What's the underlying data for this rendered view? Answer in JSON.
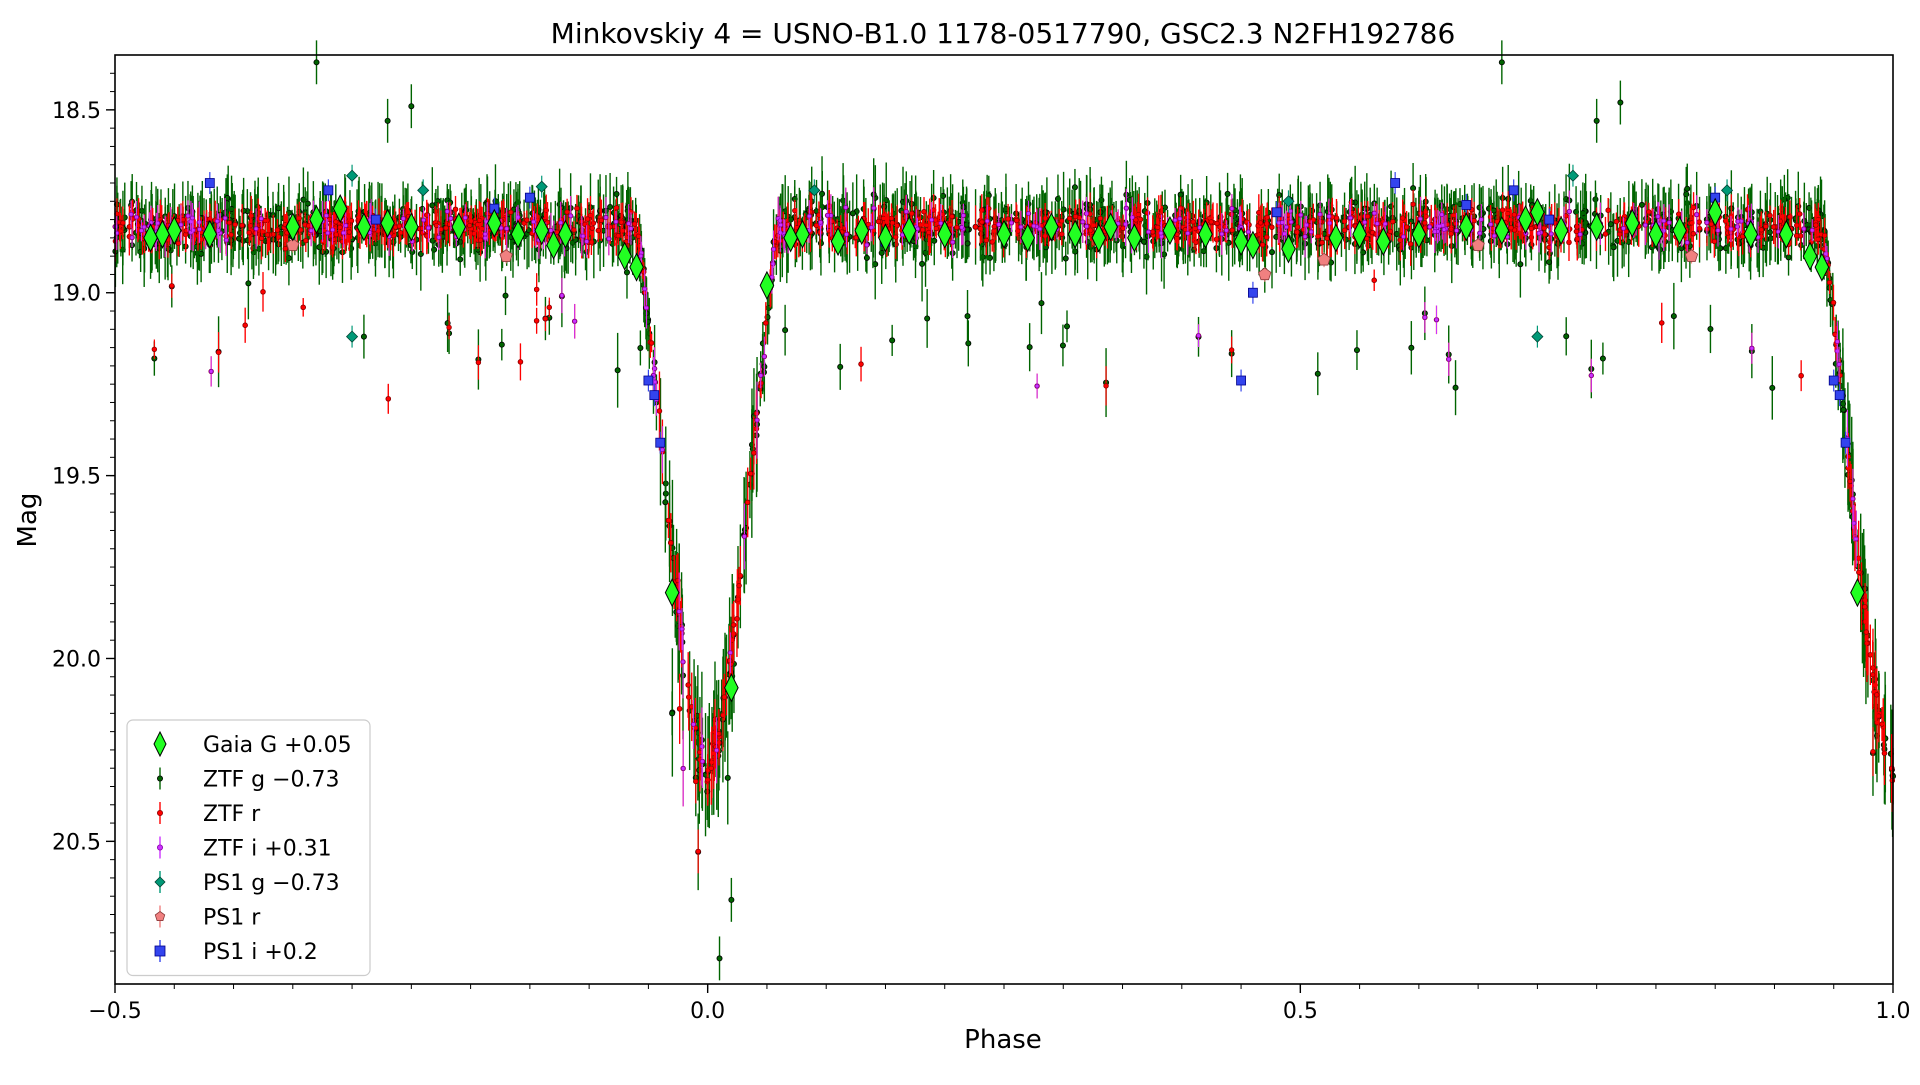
{
  "chart_data": {
    "type": "scatter",
    "title": "Minkovskiy 4 = USNO-B1.0 1178-0517790, GSC2.3 N2FH192786",
    "xlabel": "Phase",
    "ylabel": "Mag",
    "xlim": [
      -0.5,
      1.0
    ],
    "ylim": [
      20.89,
      18.35
    ],
    "y_inverted": true,
    "grid": false,
    "legend_position": "lower-left",
    "xticks": [
      -0.5,
      0.0,
      0.5,
      1.0
    ],
    "xtick_labels": [
      "−0.5",
      "0.0",
      "0.5",
      "1.0"
    ],
    "yticks": [
      18.5,
      19.0,
      19.5,
      20.0,
      20.5
    ],
    "ytick_labels": [
      "18.5",
      "19.0",
      "19.5",
      "20.0",
      "20.5"
    ],
    "light_curve": {
      "baseline_mag": 18.82,
      "eclipse_center_phase": 0.0,
      "eclipse_depth_mag": 1.48,
      "eclipse_half_width_phase": 0.06
    },
    "series": [
      {
        "name": "Gaia G +0.05",
        "color": "#22ff22",
        "edge": "#000000",
        "marker": "thin-diamond",
        "points": [
          [
            -0.47,
            18.85
          ],
          [
            -0.46,
            18.84
          ],
          [
            -0.45,
            18.83
          ],
          [
            -0.42,
            18.84
          ],
          [
            -0.35,
            18.82
          ],
          [
            -0.33,
            18.8
          ],
          [
            -0.31,
            18.77
          ],
          [
            -0.29,
            18.82
          ],
          [
            -0.27,
            18.81
          ],
          [
            -0.25,
            18.82
          ],
          [
            -0.21,
            18.82
          ],
          [
            -0.18,
            18.81
          ],
          [
            -0.16,
            18.84
          ],
          [
            -0.14,
            18.83
          ],
          [
            -0.13,
            18.87
          ],
          [
            -0.12,
            18.84
          ],
          [
            -0.07,
            18.9
          ],
          [
            -0.06,
            18.93
          ],
          [
            -0.03,
            19.82
          ],
          [
            0.02,
            20.08
          ],
          [
            0.05,
            18.98
          ],
          [
            0.07,
            18.85
          ],
          [
            0.08,
            18.84
          ],
          [
            0.11,
            18.86
          ],
          [
            0.13,
            18.83
          ],
          [
            0.15,
            18.85
          ],
          [
            0.17,
            18.83
          ],
          [
            0.2,
            18.84
          ],
          [
            0.25,
            18.84
          ],
          [
            0.27,
            18.85
          ],
          [
            0.29,
            18.82
          ],
          [
            0.31,
            18.84
          ],
          [
            0.33,
            18.85
          ],
          [
            0.34,
            18.82
          ],
          [
            0.36,
            18.85
          ],
          [
            0.39,
            18.83
          ],
          [
            0.42,
            18.84
          ],
          [
            0.45,
            18.86
          ],
          [
            0.46,
            18.87
          ],
          [
            0.49,
            18.88
          ],
          [
            0.53,
            18.85
          ],
          [
            0.55,
            18.84
          ],
          [
            0.57,
            18.86
          ],
          [
            0.6,
            18.84
          ],
          [
            0.64,
            18.82
          ],
          [
            0.67,
            18.83
          ],
          [
            0.69,
            18.8
          ],
          [
            0.7,
            18.78
          ],
          [
            0.72,
            18.83
          ],
          [
            0.75,
            18.82
          ],
          [
            0.78,
            18.81
          ],
          [
            0.8,
            18.84
          ],
          [
            0.82,
            18.83
          ],
          [
            0.85,
            18.78
          ],
          [
            0.88,
            18.84
          ],
          [
            0.91,
            18.84
          ],
          [
            0.93,
            18.9
          ],
          [
            0.94,
            18.93
          ],
          [
            0.97,
            19.82
          ]
        ]
      },
      {
        "name": "ZTF g −0.73",
        "color": "#006400",
        "edge": "#000000",
        "marker": "dot",
        "points": [
          [
            -0.33,
            18.37
          ],
          [
            0.67,
            18.37
          ],
          [
            -0.27,
            18.53
          ],
          [
            -0.25,
            18.49
          ],
          [
            0.77,
            18.48
          ],
          [
            0.75,
            18.53
          ],
          [
            -0.29,
            19.12
          ],
          [
            0.01,
            20.82
          ],
          [
            0.02,
            20.66
          ],
          [
            -0.03,
            20.15
          ],
          [
            0.47,
            18.94
          ]
        ]
      },
      {
        "name": "ZTF r",
        "color": "#ff0000",
        "edge": "#8b0000",
        "marker": "dot",
        "points": []
      },
      {
        "name": "ZTF i +0.31",
        "color": "#cc33ff",
        "edge": "#8800aa",
        "marker": "dot",
        "points": []
      },
      {
        "name": "PS1 g −0.73",
        "color": "#009977",
        "edge": "#004433",
        "marker": "diamond",
        "points": [
          [
            -0.3,
            19.12
          ],
          [
            -0.3,
            18.68
          ],
          [
            -0.24,
            18.72
          ],
          [
            -0.14,
            18.71
          ],
          [
            0.09,
            18.72
          ],
          [
            0.49,
            18.75
          ],
          [
            0.7,
            19.12
          ],
          [
            0.73,
            18.68
          ],
          [
            0.86,
            18.72
          ]
        ]
      },
      {
        "name": "PS1 r",
        "color": "#f08080",
        "edge": "#8b3a3a",
        "marker": "pentagon",
        "points": [
          [
            -0.35,
            18.87
          ],
          [
            -0.17,
            18.9
          ],
          [
            -0.13,
            18.87
          ],
          [
            0.47,
            18.95
          ],
          [
            0.52,
            18.91
          ],
          [
            0.65,
            18.87
          ],
          [
            0.83,
            18.9
          ]
        ]
      },
      {
        "name": "PS1 i +0.2",
        "color": "#3344ee",
        "edge": "#000088",
        "marker": "square",
        "points": [
          [
            -0.42,
            18.7
          ],
          [
            -0.32,
            18.72
          ],
          [
            -0.28,
            18.8
          ],
          [
            -0.18,
            18.77
          ],
          [
            -0.15,
            18.74
          ],
          [
            -0.05,
            19.24
          ],
          [
            -0.045,
            19.28
          ],
          [
            -0.04,
            19.41
          ],
          [
            0.15,
            18.86
          ],
          [
            0.46,
            19.0
          ],
          [
            0.45,
            19.24
          ],
          [
            0.48,
            18.78
          ],
          [
            0.58,
            18.7
          ],
          [
            0.64,
            18.76
          ],
          [
            0.68,
            18.72
          ],
          [
            0.71,
            18.8
          ],
          [
            0.85,
            18.74
          ],
          [
            0.95,
            19.24
          ],
          [
            0.955,
            19.28
          ],
          [
            0.96,
            19.41
          ]
        ]
      }
    ]
  }
}
